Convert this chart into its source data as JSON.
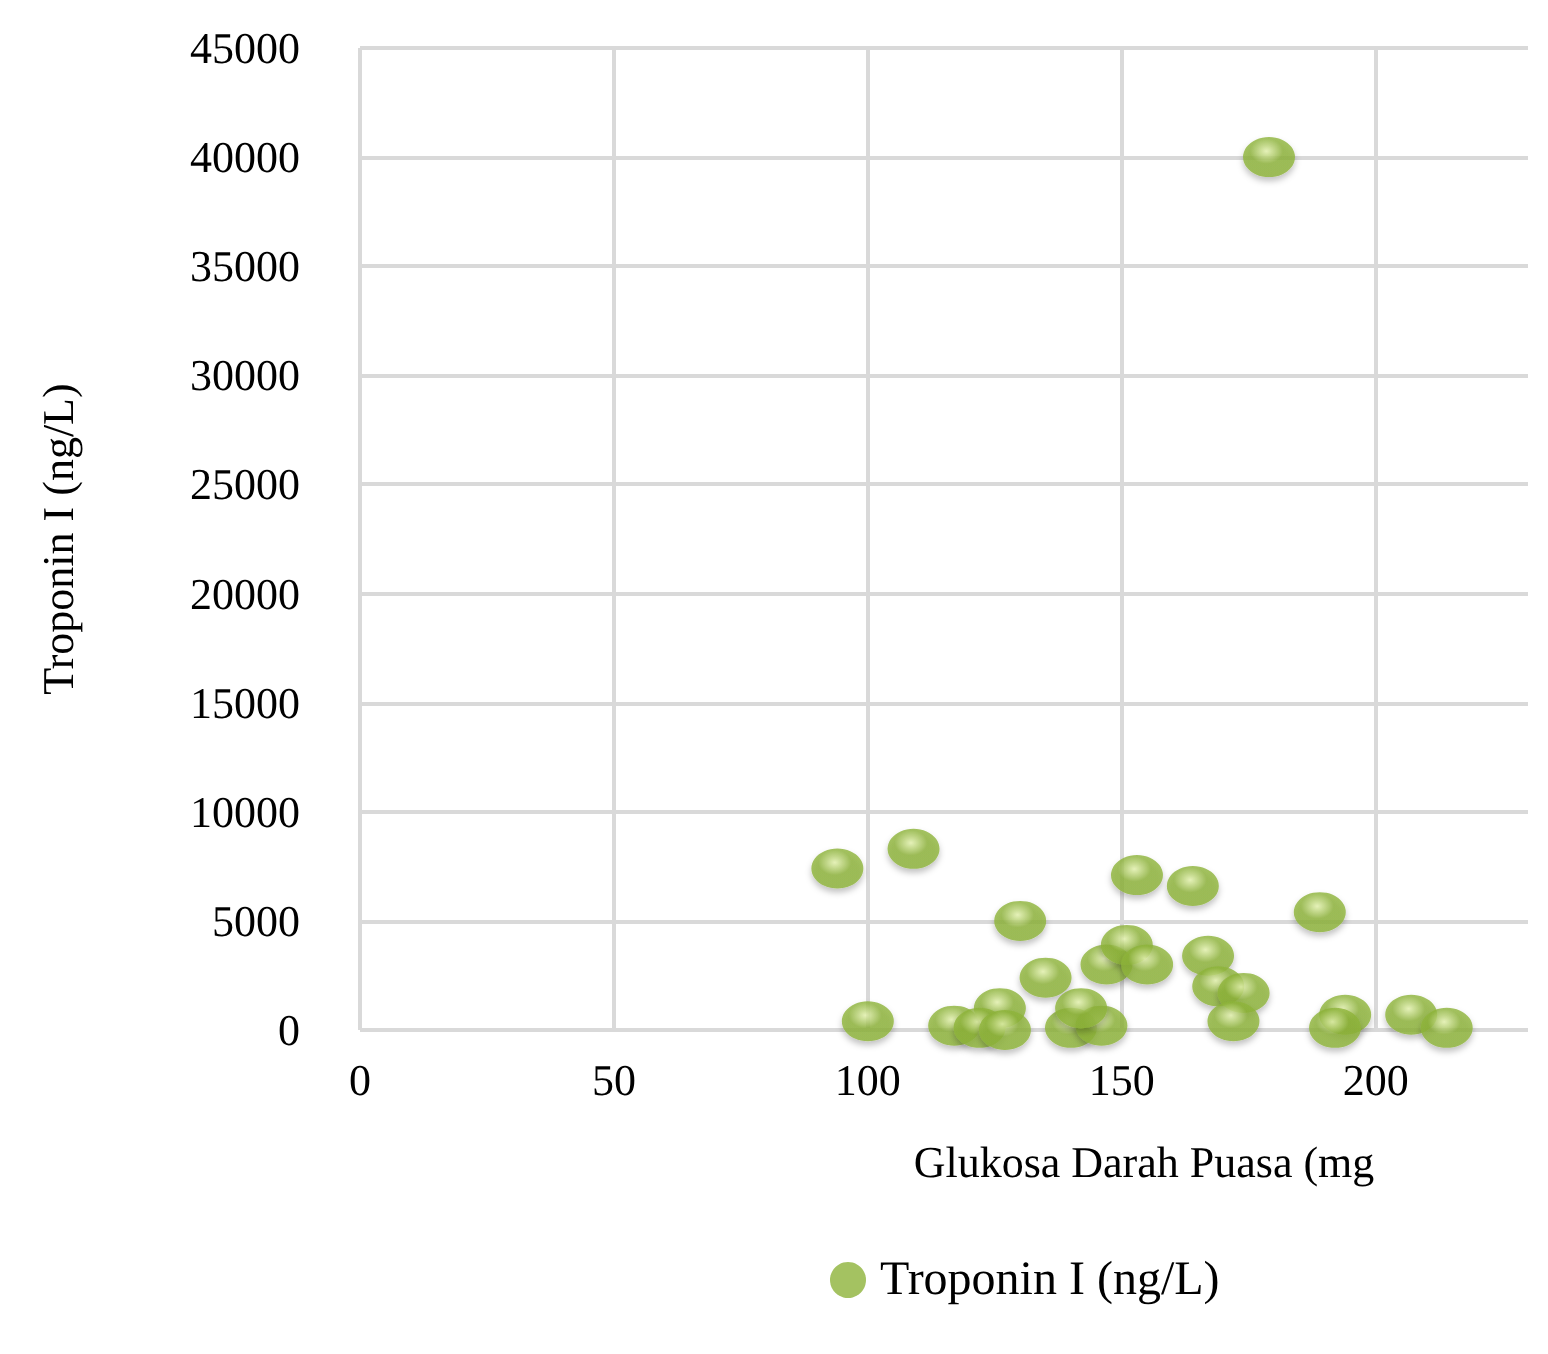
{
  "chart_data": {
    "type": "scatter",
    "xlabel": "Glukosa Darah Puasa (mg",
    "ylabel": "Troponin I (ng/L)",
    "x": [
      94,
      109,
      100,
      117,
      126,
      122,
      127,
      130,
      135,
      140,
      146,
      147,
      151,
      155,
      153,
      164,
      167,
      169,
      174,
      172,
      189,
      194,
      192,
      207,
      214,
      179,
      142
    ],
    "series": [
      {
        "name": "Troponin I (ng/L)",
        "color": "#8db33a",
        "values": [
          7400,
          8300,
          400,
          200,
          1000,
          100,
          0,
          5000,
          2400,
          100,
          200,
          3000,
          3900,
          3000,
          7100,
          6600,
          3400,
          2000,
          1700,
          400,
          5400,
          700,
          100,
          700,
          100,
          40000,
          1000
        ]
      }
    ],
    "xlim": [
      0,
      230
    ],
    "xticks": [
      0,
      50,
      100,
      150,
      200
    ],
    "ylim": [
      0,
      45000
    ],
    "yticks": [
      0,
      5000,
      10000,
      15000,
      20000,
      25000,
      30000,
      35000,
      40000,
      45000
    ],
    "grid": true,
    "legend": "bottom",
    "marker": "circle"
  }
}
